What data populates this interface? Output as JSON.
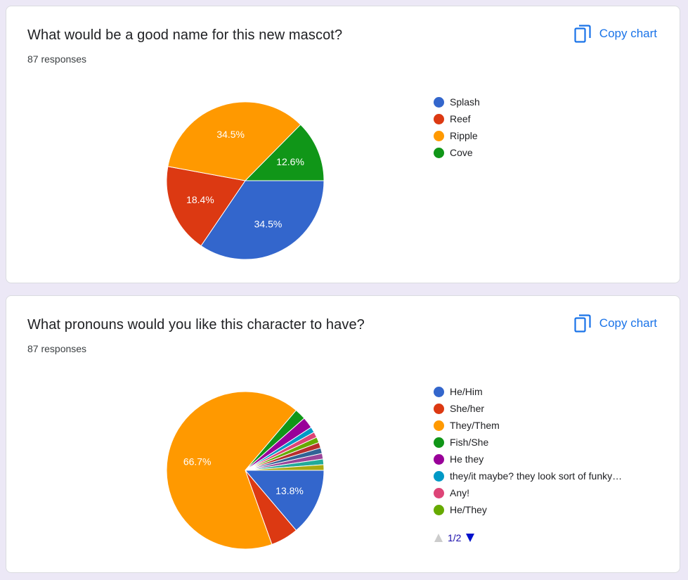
{
  "cards": [
    {
      "title": "What would be a good name for this new mascot?",
      "responses": "87 responses",
      "copy_label": "Copy chart"
    },
    {
      "title": "What pronouns would you like this character to have?",
      "responses": "87 responses",
      "copy_label": "Copy chart",
      "pager": "1/2"
    }
  ],
  "chart_data": [
    {
      "type": "pie",
      "title": "What would be a good name for this new mascot?",
      "slices": [
        {
          "label": "Splash",
          "value": 34.5,
          "color": "#3366cc",
          "display": "34.5%"
        },
        {
          "label": "Reef",
          "value": 18.4,
          "color": "#dc3912",
          "display": "18.4%"
        },
        {
          "label": "Ripple",
          "value": 34.5,
          "color": "#ff9900",
          "display": "34.5%"
        },
        {
          "label": "Cove",
          "value": 12.6,
          "color": "#109618",
          "display": "12.6%"
        }
      ],
      "legend": [
        "Splash",
        "Reef",
        "Ripple",
        "Cove"
      ],
      "legend_placement": "right"
    },
    {
      "type": "pie",
      "title": "What pronouns would you like this character to have?",
      "slices": [
        {
          "label": "He/Him",
          "value": 13.8,
          "color": "#3366cc",
          "display": "13.8%"
        },
        {
          "label": "She/her",
          "value": 5.7,
          "color": "#dc3912",
          "display": ""
        },
        {
          "label": "They/Them",
          "value": 66.7,
          "color": "#ff9900",
          "display": "66.7%"
        },
        {
          "label": "Fish/She",
          "value": 2.3,
          "color": "#109618",
          "display": ""
        },
        {
          "label": "He they",
          "value": 2.3,
          "color": "#990099",
          "display": ""
        },
        {
          "label": "they/it maybe? they look sort of funky…",
          "value": 1.15,
          "color": "#0099c6",
          "display": ""
        },
        {
          "label": "Any!",
          "value": 1.15,
          "color": "#dd4477",
          "display": ""
        },
        {
          "label": "He/They",
          "value": 1.15,
          "color": "#66aa00",
          "display": ""
        },
        {
          "label": "",
          "value": 1.15,
          "color": "#b82e2e",
          "display": ""
        },
        {
          "label": "",
          "value": 1.15,
          "color": "#316395",
          "display": ""
        },
        {
          "label": "",
          "value": 1.15,
          "color": "#994499",
          "display": ""
        },
        {
          "label": "",
          "value": 1.15,
          "color": "#22aa99",
          "display": ""
        },
        {
          "label": "",
          "value": 1.15,
          "color": "#aaaa11",
          "display": ""
        }
      ],
      "legend": [
        "He/Him",
        "She/her",
        "They/Them",
        "Fish/She",
        "He they",
        "they/it maybe? they look sort of funky…",
        "Any!",
        "He/They"
      ],
      "legend_placement": "right"
    }
  ]
}
